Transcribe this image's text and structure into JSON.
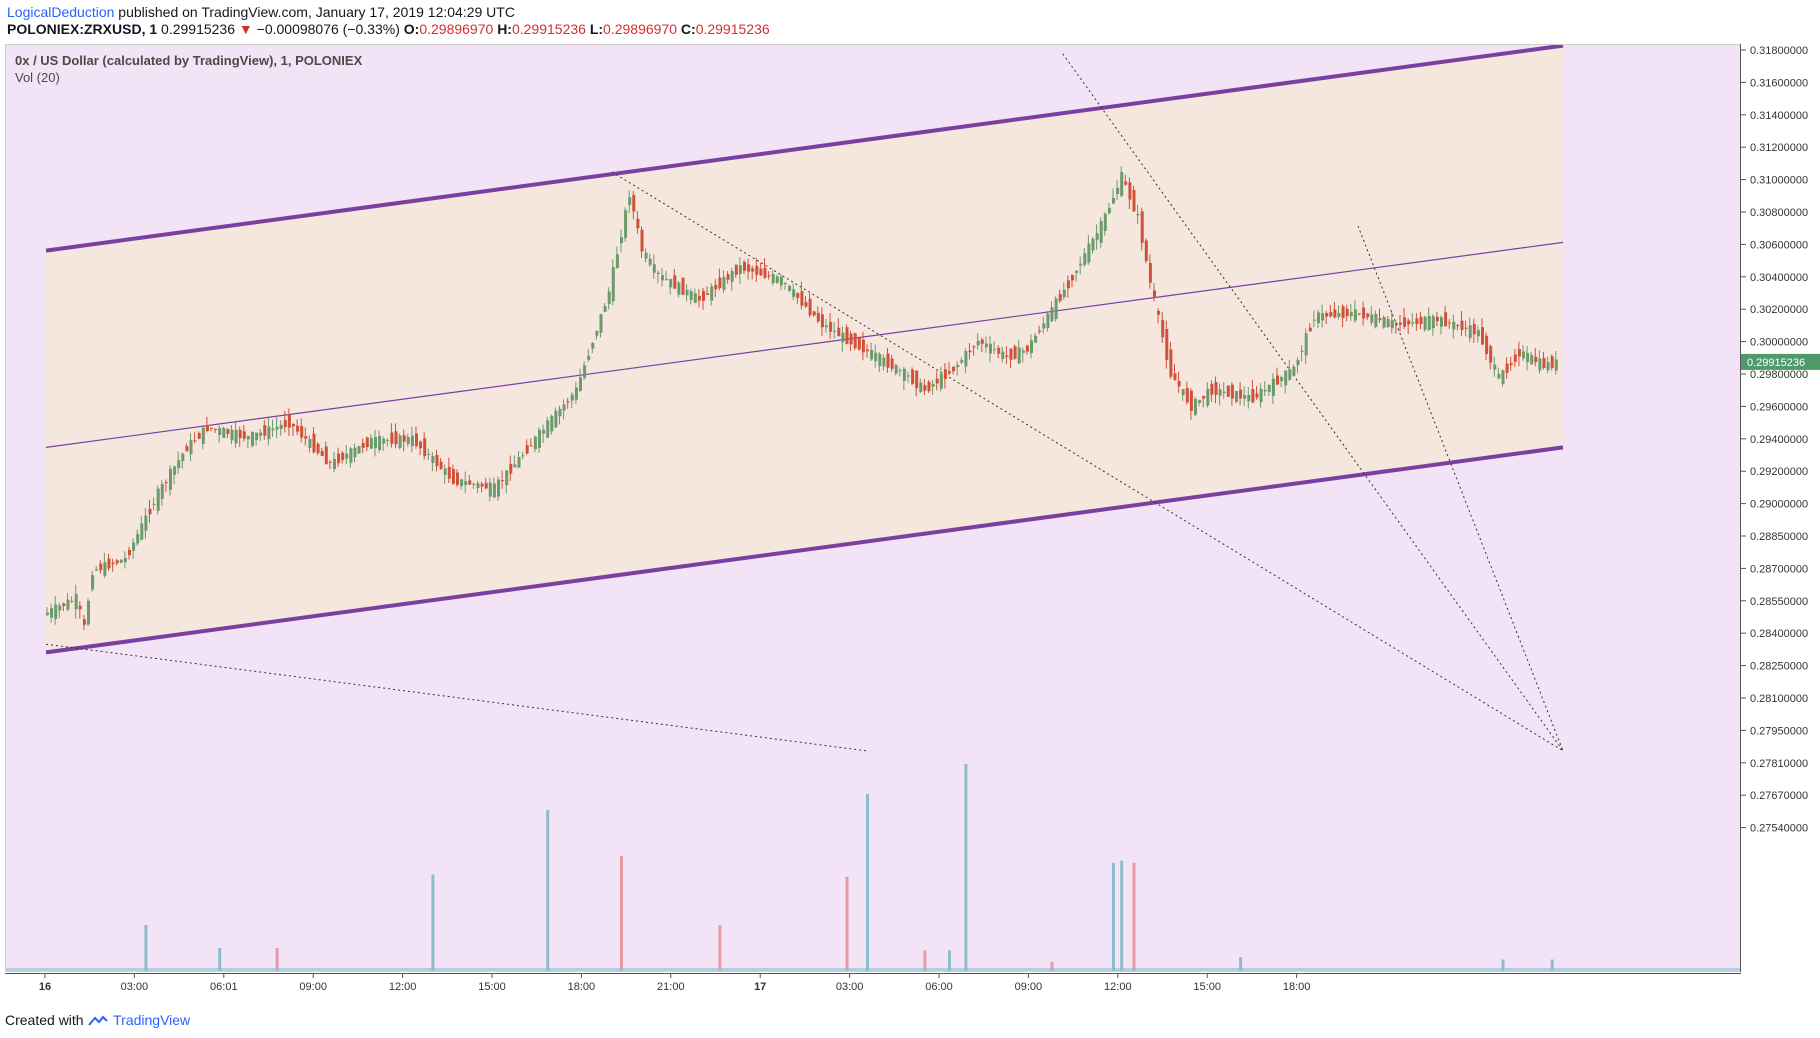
{
  "header": {
    "author": "LogicalDeduction",
    "published": "published on TradingView.com, January 17, 2019 12:04:29 UTC",
    "symbol": "POLONIEX:ZRXUSD, 1",
    "price": "0.29915236",
    "arrow": "▼",
    "change": "−0.00098076 (−0.33%)",
    "o_label": "O:",
    "o_value": "0.29896970",
    "h_label": "H:",
    "h_value": "0.29915236",
    "l_label": "L:",
    "l_value": "0.29896970",
    "c_label": "C:",
    "c_value": "0.29915236"
  },
  "legend": {
    "title": "0x / US Dollar (calculated by TradingView), 1, POLONIEX",
    "volume": "Vol (20)"
  },
  "footer": {
    "created": "Created with",
    "brand": "TradingView"
  },
  "colors": {
    "up": "#6b9a6b",
    "down": "#d0503a",
    "vol_up": "#8fbccc",
    "vol_down": "#e89aa6",
    "channel_line": "#7b3fa0",
    "channel_fill": "#f5e6de",
    "outside_fill": "#f2e4f6",
    "price_label": "#4f9a6b"
  },
  "chart_data": {
    "type": "candlestick",
    "title": "0x / US Dollar (calculated by TradingView), 1, POLONIEX",
    "y_ticks": [
      "0.31800000",
      "0.31600000",
      "0.31400000",
      "0.31200000",
      "0.31000000",
      "0.30800000",
      "0.30600000",
      "0.30400000",
      "0.30200000",
      "0.30000000",
      "0.29800000",
      "0.29600000",
      "0.29400000",
      "0.29200000",
      "0.29000000",
      "0.28850000",
      "0.28700000",
      "0.28550000",
      "0.28400000",
      "0.28250000",
      "0.28100000",
      "0.27950000",
      "0.27810000",
      "0.27670000",
      "0.27540000"
    ],
    "x_ticks": [
      "16",
      "03:00",
      "06:01",
      "09:00",
      "12:00",
      "15:00",
      "18:00",
      "21:00",
      "17",
      "03:00",
      "06:00",
      "09:00",
      "12:00",
      "15:00",
      "18:00"
    ],
    "last_price_label": "0.29915236",
    "last_price": 0.29915236,
    "price_path": [
      [
        0.0,
        0.2838
      ],
      [
        0.8,
        0.2848
      ],
      [
        1.0,
        0.283
      ],
      [
        1.2,
        0.2865
      ],
      [
        2.0,
        0.2872
      ],
      [
        2.8,
        0.2912
      ],
      [
        3.5,
        0.294
      ],
      [
        4.0,
        0.2952
      ],
      [
        5.0,
        0.2946
      ],
      [
        6.0,
        0.2955
      ],
      [
        7.0,
        0.293
      ],
      [
        8.0,
        0.2944
      ],
      [
        9.0,
        0.2945
      ],
      [
        10.0,
        0.292
      ],
      [
        11.0,
        0.2915
      ],
      [
        12.0,
        0.2945
      ],
      [
        13.0,
        0.2975
      ],
      [
        13.8,
        0.3035
      ],
      [
        14.3,
        0.3095
      ],
      [
        14.6,
        0.306
      ],
      [
        15.0,
        0.3045
      ],
      [
        16.0,
        0.303
      ],
      [
        17.0,
        0.305
      ],
      [
        18.0,
        0.3042
      ],
      [
        19.0,
        0.3015
      ],
      [
        20.0,
        0.3
      ],
      [
        21.0,
        0.2985
      ],
      [
        21.5,
        0.2975
      ],
      [
        22.2,
        0.2988
      ],
      [
        22.8,
        0.3005
      ],
      [
        23.5,
        0.2995
      ],
      [
        24.0,
        0.3
      ],
      [
        25.0,
        0.304
      ],
      [
        25.8,
        0.3075
      ],
      [
        26.3,
        0.3105
      ],
      [
        26.7,
        0.308
      ],
      [
        27.0,
        0.304
      ],
      [
        27.5,
        0.2985
      ],
      [
        28.0,
        0.2965
      ],
      [
        28.5,
        0.2975
      ],
      [
        29.5,
        0.297
      ],
      [
        30.5,
        0.2988
      ],
      [
        31.0,
        0.302
      ],
      [
        32.0,
        0.3022
      ],
      [
        33.0,
        0.3015
      ],
      [
        34.0,
        0.3018
      ],
      [
        35.0,
        0.301
      ],
      [
        35.5,
        0.2982
      ],
      [
        36.0,
        0.2998
      ],
      [
        36.6,
        0.299
      ],
      [
        36.9,
        0.29915236
      ]
    ],
    "volume_spikes": [
      [
        2.4,
        0.2,
        "up"
      ],
      [
        4.2,
        0.1,
        "up"
      ],
      [
        5.6,
        0.1,
        "down"
      ],
      [
        9.4,
        0.42,
        "up"
      ],
      [
        12.2,
        0.7,
        "up"
      ],
      [
        14.0,
        0.5,
        "down"
      ],
      [
        16.4,
        0.2,
        "down"
      ],
      [
        19.5,
        0.41,
        "down"
      ],
      [
        20.0,
        0.77,
        "up"
      ],
      [
        21.4,
        0.09,
        "down"
      ],
      [
        22.0,
        0.09,
        "up"
      ],
      [
        22.4,
        0.9,
        "up"
      ],
      [
        24.5,
        0.04,
        "down"
      ],
      [
        26.0,
        0.47,
        "up"
      ],
      [
        26.2,
        0.48,
        "up"
      ],
      [
        26.5,
        0.47,
        "down"
      ],
      [
        29.1,
        0.06,
        "up"
      ],
      [
        35.5,
        0.05,
        "up"
      ],
      [
        36.7,
        0.05,
        "up"
      ]
    ],
    "channel": {
      "start": [
        0.0,
        0.294
      ],
      "end": [
        37.0,
        0.3065
      ],
      "upper_offset": 0.012,
      "lower_offset": -0.0125
    },
    "trendlines": [
      {
        "start": [
          13.8,
          0.3108
        ],
        "end": [
          37.0,
          0.2755
        ],
        "style": "dotted"
      },
      {
        "start": [
          24.8,
          0.318
        ],
        "end": [
          37.0,
          0.2755
        ],
        "style": "dotted"
      },
      {
        "start": [
          32.0,
          0.3075
        ],
        "end": [
          37.0,
          0.2755
        ],
        "style": "dotted"
      },
      {
        "start": [
          0.0,
          0.282
        ],
        "end": [
          20.0,
          0.2755
        ],
        "style": "dotted"
      }
    ]
  }
}
